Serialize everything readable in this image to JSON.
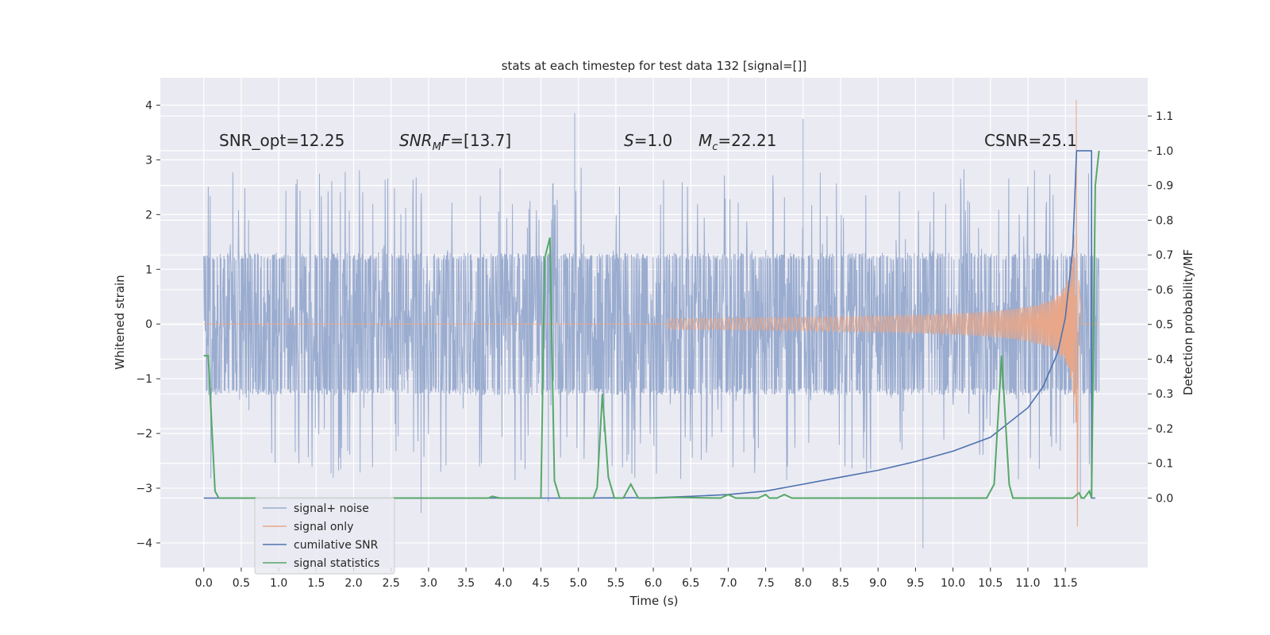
{
  "chart_data": {
    "type": "line",
    "title": "stats at each timestep for test data 132 [signal=[]]",
    "xlabel": "Time (s)",
    "ylabel": "Whitened strain",
    "ylabel_right": "Detection probability/MF",
    "xlim": [
      -0.58,
      12.6
    ],
    "ylim": [
      -4.45,
      4.5
    ],
    "ylim_right": [
      -0.2,
      1.21
    ],
    "grid": true,
    "legend_placement": "lower-left",
    "x_ticks": [
      0.0,
      0.5,
      1.0,
      1.5,
      2.0,
      2.5,
      3.0,
      3.5,
      4.0,
      4.5,
      5.0,
      5.5,
      6.0,
      6.5,
      7.0,
      7.5,
      8.0,
      8.5,
      9.0,
      9.5,
      10.0,
      10.5,
      11.0,
      11.5
    ],
    "x_tick_labels": [
      "0.0",
      "0.5",
      "1.0",
      "1.5",
      "2.0",
      "2.5",
      "3.0",
      "3.5",
      "4.0",
      "4.5",
      "5.0",
      "5.5",
      "6.0",
      "6.5",
      "7.0",
      "7.5",
      "8.0",
      "8.5",
      "9.0",
      "9.5",
      "10.0",
      "10.5",
      "11.0",
      "11.5"
    ],
    "y_ticks": [
      -4,
      -3,
      -2,
      -1,
      0,
      1,
      2,
      3,
      4
    ],
    "y_tick_labels": [
      "−4",
      "−3",
      "−2",
      "−1",
      "0",
      "1",
      "2",
      "3",
      "4"
    ],
    "y_right_ticks": [
      0.0,
      0.1,
      0.2,
      0.3,
      0.4,
      0.5,
      0.6,
      0.7,
      0.8,
      0.9,
      1.0,
      1.1
    ],
    "y_right_tick_labels": [
      "0.0",
      "0.1",
      "0.2",
      "0.3",
      "0.4",
      "0.5",
      "0.6",
      "0.7",
      "0.8",
      "0.9",
      "1.0",
      "1.1"
    ],
    "annotations": [
      {
        "key": "snr-opt",
        "text": "SNR_opt=12.25",
        "x": 0.2,
        "y": 3.2
      },
      {
        "key": "snr-mf",
        "text": "SNRMF=[13.7]",
        "x": 2.6,
        "y": 3.2
      },
      {
        "key": "s",
        "text": "S=1.0",
        "x": 5.6,
        "y": 3.2
      },
      {
        "key": "mc",
        "text": "Mc=22.21",
        "x": 6.6,
        "y": 3.2
      },
      {
        "key": "csnr",
        "text": "CSNR=25.1",
        "x": 10.4,
        "y": 3.2
      }
    ],
    "series": [
      {
        "name": "signal+ noise",
        "axis": "left",
        "color": "#9aaccf",
        "kind": "noise",
        "duration_s": 11.95,
        "core_amplitude": 1.3,
        "typical_peak": 2.2,
        "extreme_spikes": [
          [
            4.95,
            3.85
          ],
          [
            9.6,
            -4.1
          ],
          [
            2.9,
            -3.45
          ],
          [
            8.0,
            3.75
          ],
          [
            4.6,
            -3.25
          ],
          [
            11.7,
            -3.2
          ]
        ]
      },
      {
        "name": "signal only",
        "axis": "left",
        "color": "#e8a789",
        "kind": "chirp",
        "onset_s": 6.2,
        "merger_s": 11.65,
        "ringdown_end_s": 11.72,
        "peak_amplitude": 4.1,
        "min_amplitude": -3.7
      },
      {
        "name": "cumilative SNR",
        "axis": "right",
        "color": "#4c72b0",
        "x": [
          0.0,
          5.0,
          6.0,
          6.5,
          7.0,
          7.5,
          8.0,
          8.5,
          9.0,
          9.5,
          10.0,
          10.5,
          11.0,
          11.2,
          11.4,
          11.5,
          11.6,
          11.65,
          11.7,
          11.85,
          11.85,
          11.9
        ],
        "y": [
          0.0,
          0.0,
          0.001,
          0.005,
          0.01,
          0.02,
          0.04,
          0.06,
          0.08,
          0.105,
          0.135,
          0.175,
          0.26,
          0.32,
          0.42,
          0.52,
          0.72,
          1.0,
          1.0,
          1.0,
          0.0,
          0.0
        ]
      },
      {
        "name": "signal statistics",
        "axis": "right",
        "color": "#55a868",
        "x": [
          0.0,
          0.06,
          0.15,
          0.2,
          3.8,
          3.85,
          3.95,
          4.5,
          4.55,
          4.62,
          4.68,
          4.75,
          4.8,
          5.2,
          5.25,
          5.32,
          5.4,
          5.48,
          5.6,
          5.7,
          5.8,
          6.0,
          6.3,
          6.9,
          7.0,
          7.1,
          7.4,
          7.5,
          7.55,
          7.65,
          7.75,
          7.85,
          10.45,
          10.55,
          10.65,
          10.75,
          10.8,
          10.9,
          11.6,
          11.68,
          11.72,
          11.75,
          11.82,
          11.85,
          11.9,
          11.95
        ],
        "y": [
          0.41,
          0.41,
          0.02,
          0.0,
          0.0,
          0.005,
          0.0,
          0.0,
          0.69,
          0.75,
          0.05,
          0.0,
          0.0,
          0.0,
          0.03,
          0.3,
          0.06,
          0.0,
          0.0,
          0.04,
          0.0,
          0.0,
          0.002,
          0.0,
          0.01,
          0.0,
          0.0,
          0.01,
          0.0,
          0.0,
          0.01,
          0.0,
          0.0,
          0.04,
          0.41,
          0.04,
          0.0,
          0.0,
          0.0,
          0.015,
          0.0,
          0.0,
          0.02,
          0.0,
          0.9,
          1.0
        ]
      }
    ]
  }
}
